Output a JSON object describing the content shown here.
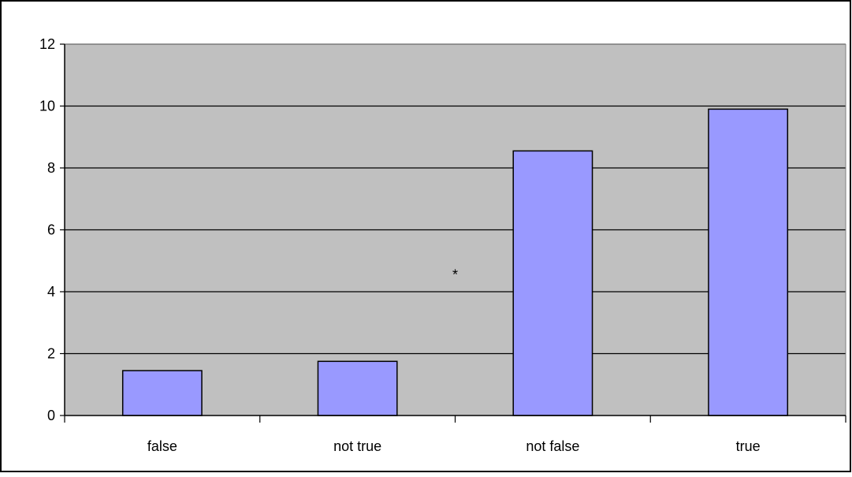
{
  "chart_data": {
    "type": "bar",
    "categories": [
      "false",
      "not true",
      "not false",
      "true"
    ],
    "values": [
      1.45,
      1.75,
      8.55,
      9.9
    ],
    "ylim": [
      0,
      12
    ],
    "yticks": [
      0,
      2,
      4,
      6,
      8,
      10,
      12
    ],
    "grid": true,
    "legend": "none",
    "annotations": [
      {
        "text": "*",
        "between": [
          "not true",
          "not false"
        ],
        "y": 4.6
      }
    ],
    "colors": {
      "bar_fill": "#9999ff",
      "bar_stroke": "#000000",
      "plot_background": "#c0c0c0",
      "gridline": "#000000",
      "frame": "#000000"
    }
  }
}
